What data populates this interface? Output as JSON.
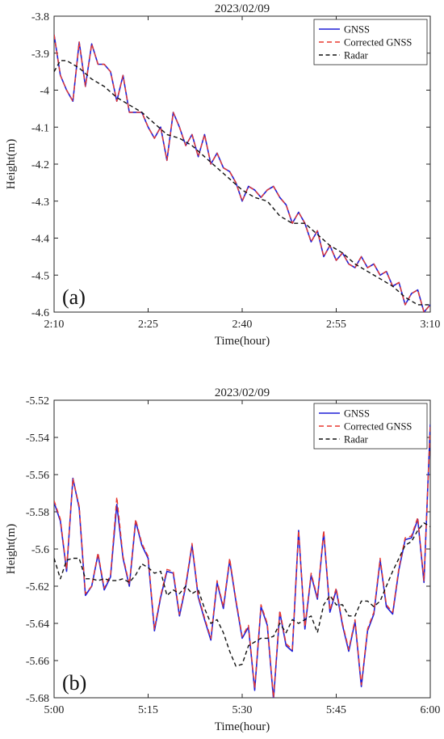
{
  "chart_data": [
    {
      "type": "line",
      "title": "2023/02/09",
      "panel_label": "(a)",
      "xlabel": "Time(hour)",
      "ylabel": "Height(m)",
      "x_unit": "minutes after 2:10",
      "xlim": [
        0,
        60
      ],
      "ylim": [
        -4.6,
        -3.8
      ],
      "xticks": [
        0,
        15,
        30,
        45,
        60
      ],
      "xtick_labels": [
        "2:10",
        "2:25",
        "2:40",
        "2:55",
        "3:10"
      ],
      "yticks": [
        -3.8,
        -3.9,
        -4.0,
        -4.1,
        -4.2,
        -4.3,
        -4.4,
        -4.5,
        -4.6
      ],
      "ytick_labels": [
        "-3.8",
        "-3.9",
        "-4",
        "-4.1",
        "-4.2",
        "-4.3",
        "-4.4",
        "-4.5",
        "-4.6"
      ],
      "grid": false,
      "legend_position": "top-right",
      "series": [
        {
          "name": "GNSS",
          "color": "#1f1fd6",
          "dash": "solid",
          "x": [
            0,
            1,
            2,
            3,
            4,
            5,
            6,
            7,
            8,
            9,
            10,
            11,
            12,
            13,
            14,
            15,
            16,
            17,
            18,
            19,
            20,
            21,
            22,
            23,
            24,
            25,
            26,
            27,
            28,
            29,
            30,
            31,
            32,
            33,
            34,
            35,
            36,
            37,
            38,
            39,
            40,
            41,
            42,
            43,
            44,
            45,
            46,
            47,
            48,
            49,
            50,
            51,
            52,
            53,
            54,
            55,
            56,
            57,
            58,
            59,
            60
          ],
          "y": [
            -3.85,
            -3.96,
            -4.0,
            -4.03,
            -3.87,
            -3.99,
            -3.875,
            -3.93,
            -3.93,
            -3.95,
            -4.03,
            -3.96,
            -4.06,
            -4.06,
            -4.06,
            -4.1,
            -4.13,
            -4.1,
            -4.19,
            -4.06,
            -4.1,
            -4.15,
            -4.12,
            -4.18,
            -4.12,
            -4.2,
            -4.17,
            -4.21,
            -4.22,
            -4.25,
            -4.3,
            -4.26,
            -4.27,
            -4.29,
            -4.27,
            -4.26,
            -4.29,
            -4.31,
            -4.36,
            -4.33,
            -4.36,
            -4.41,
            -4.38,
            -4.45,
            -4.42,
            -4.46,
            -4.44,
            -4.47,
            -4.48,
            -4.45,
            -4.48,
            -4.47,
            -4.5,
            -4.49,
            -4.53,
            -4.52,
            -4.58,
            -4.55,
            -4.54,
            -4.6,
            -4.58
          ]
        },
        {
          "name": "Corrected GNSS",
          "color": "#e8392f",
          "dash": "dashed",
          "x": [
            0,
            1,
            2,
            3,
            4,
            5,
            6,
            7,
            8,
            9,
            10,
            11,
            12,
            13,
            14,
            15,
            16,
            17,
            18,
            19,
            20,
            21,
            22,
            23,
            24,
            25,
            26,
            27,
            28,
            29,
            30,
            31,
            32,
            33,
            34,
            35,
            36,
            37,
            38,
            39,
            40,
            41,
            42,
            43,
            44,
            45,
            46,
            47,
            48,
            49,
            50,
            51,
            52,
            53,
            54,
            55,
            56,
            57,
            58,
            59,
            60
          ],
          "y": [
            -3.85,
            -3.96,
            -4.0,
            -4.03,
            -3.87,
            -3.99,
            -3.875,
            -3.93,
            -3.93,
            -3.95,
            -4.03,
            -3.96,
            -4.06,
            -4.06,
            -4.06,
            -4.1,
            -4.13,
            -4.1,
            -4.19,
            -4.06,
            -4.1,
            -4.15,
            -4.12,
            -4.18,
            -4.12,
            -4.2,
            -4.17,
            -4.21,
            -4.22,
            -4.25,
            -4.3,
            -4.26,
            -4.27,
            -4.29,
            -4.27,
            -4.26,
            -4.29,
            -4.31,
            -4.36,
            -4.33,
            -4.36,
            -4.41,
            -4.38,
            -4.45,
            -4.42,
            -4.46,
            -4.44,
            -4.47,
            -4.48,
            -4.45,
            -4.48,
            -4.47,
            -4.5,
            -4.49,
            -4.53,
            -4.52,
            -4.58,
            -4.55,
            -4.54,
            -4.6,
            -4.58
          ]
        },
        {
          "name": "Radar",
          "color": "#111111",
          "dash": "dashed",
          "x": [
            0,
            1,
            2,
            4,
            6,
            8,
            10,
            12,
            14,
            16,
            18,
            20,
            22,
            24,
            26,
            28,
            30,
            32,
            34,
            36,
            38,
            40,
            42,
            44,
            46,
            48,
            50,
            52,
            54,
            56,
            58,
            60
          ],
          "y": [
            -3.95,
            -3.92,
            -3.92,
            -3.94,
            -3.97,
            -3.99,
            -4.02,
            -4.04,
            -4.06,
            -4.09,
            -4.12,
            -4.13,
            -4.15,
            -4.18,
            -4.21,
            -4.24,
            -4.27,
            -4.29,
            -4.3,
            -4.34,
            -4.36,
            -4.36,
            -4.39,
            -4.42,
            -4.44,
            -4.47,
            -4.49,
            -4.51,
            -4.53,
            -4.56,
            -4.58,
            -4.58
          ]
        }
      ]
    },
    {
      "type": "line",
      "title": "2023/02/09",
      "panel_label": "(b)",
      "xlabel": "Time(hour)",
      "ylabel": "Height(m)",
      "x_unit": "minutes after 5:00",
      "xlim": [
        0,
        60
      ],
      "ylim": [
        -5.68,
        -5.52
      ],
      "xticks": [
        0,
        15,
        30,
        45,
        60
      ],
      "xtick_labels": [
        "5:00",
        "5:15",
        "5:30",
        "5:45",
        "6:00"
      ],
      "yticks": [
        -5.52,
        -5.54,
        -5.56,
        -5.58,
        -5.6,
        -5.62,
        -5.64,
        -5.66,
        -5.68
      ],
      "ytick_labels": [
        "-5.52",
        "-5.54",
        "-5.56",
        "-5.58",
        "-5.6",
        "-5.62",
        "-5.64",
        "-5.66",
        "-5.68"
      ],
      "grid": false,
      "legend_position": "top-right",
      "series": [
        {
          "name": "GNSS",
          "color": "#1f1fd6",
          "dash": "solid",
          "x": [
            0,
            1,
            2,
            3,
            4,
            5,
            6,
            7,
            8,
            9,
            10,
            11,
            12,
            13,
            14,
            15,
            16,
            17,
            18,
            19,
            20,
            21,
            22,
            23,
            24,
            25,
            26,
            27,
            28,
            29,
            30,
            31,
            32,
            33,
            34,
            35,
            36,
            37,
            38,
            39,
            40,
            41,
            42,
            43,
            44,
            45,
            46,
            47,
            48,
            49,
            50,
            51,
            52,
            53,
            54,
            55,
            56,
            57,
            58,
            59,
            60
          ],
          "y": [
            -5.575,
            -5.585,
            -5.612,
            -5.562,
            -5.578,
            -5.625,
            -5.62,
            -5.603,
            -5.622,
            -5.615,
            -5.576,
            -5.605,
            -5.62,
            -5.585,
            -5.598,
            -5.605,
            -5.644,
            -5.626,
            -5.612,
            -5.613,
            -5.636,
            -5.62,
            -5.598,
            -5.626,
            -5.638,
            -5.649,
            -5.618,
            -5.632,
            -5.606,
            -5.628,
            -5.648,
            -5.642,
            -5.676,
            -5.631,
            -5.641,
            -5.681,
            -5.634,
            -5.652,
            -5.655,
            -5.59,
            -5.643,
            -5.614,
            -5.627,
            -5.591,
            -5.634,
            -5.622,
            -5.641,
            -5.655,
            -5.639,
            -5.674,
            -5.644,
            -5.635,
            -5.606,
            -5.631,
            -5.635,
            -5.611,
            -5.595,
            -5.594,
            -5.584,
            -5.618,
            -5.533
          ]
        },
        {
          "name": "Corrected GNSS",
          "color": "#e8392f",
          "dash": "dashed",
          "x": [
            0,
            1,
            2,
            3,
            4,
            5,
            6,
            7,
            8,
            9,
            10,
            11,
            12,
            13,
            14,
            15,
            16,
            17,
            18,
            19,
            20,
            21,
            22,
            23,
            24,
            25,
            26,
            27,
            28,
            29,
            30,
            31,
            32,
            33,
            34,
            35,
            36,
            37,
            38,
            39,
            40,
            41,
            42,
            43,
            44,
            45,
            46,
            47,
            48,
            49,
            50,
            51,
            52,
            53,
            54,
            55,
            56,
            57,
            58,
            59,
            60
          ],
          "y": [
            -5.574,
            -5.584,
            -5.611,
            -5.562,
            -5.577,
            -5.624,
            -5.62,
            -5.602,
            -5.621,
            -5.614,
            -5.572,
            -5.604,
            -5.619,
            -5.584,
            -5.597,
            -5.604,
            -5.643,
            -5.625,
            -5.611,
            -5.612,
            -5.635,
            -5.619,
            -5.597,
            -5.625,
            -5.637,
            -5.648,
            -5.617,
            -5.631,
            -5.605,
            -5.627,
            -5.647,
            -5.641,
            -5.675,
            -5.63,
            -5.64,
            -5.68,
            -5.633,
            -5.651,
            -5.654,
            -5.59,
            -5.642,
            -5.613,
            -5.626,
            -5.59,
            -5.633,
            -5.621,
            -5.64,
            -5.654,
            -5.638,
            -5.673,
            -5.643,
            -5.634,
            -5.605,
            -5.63,
            -5.634,
            -5.61,
            -5.594,
            -5.593,
            -5.583,
            -5.617,
            -5.534
          ]
        },
        {
          "name": "Radar",
          "color": "#111111",
          "dash": "dashed",
          "x": [
            0,
            1,
            2,
            3,
            4,
            5,
            6,
            7,
            8,
            9,
            10,
            11,
            12,
            13,
            14,
            15,
            16,
            17,
            18,
            19,
            20,
            21,
            22,
            23,
            24,
            25,
            26,
            27,
            28,
            29,
            30,
            31,
            32,
            33,
            34,
            35,
            36,
            37,
            38,
            39,
            40,
            41,
            42,
            43,
            44,
            45,
            46,
            47,
            48,
            49,
            50,
            51,
            52,
            53,
            54,
            55,
            56,
            57,
            58,
            59,
            60
          ],
          "y": [
            -5.605,
            -5.616,
            -5.606,
            -5.605,
            -5.605,
            -5.616,
            -5.616,
            -5.617,
            -5.616,
            -5.617,
            -5.617,
            -5.616,
            -5.618,
            -5.614,
            -5.608,
            -5.61,
            -5.613,
            -5.612,
            -5.625,
            -5.622,
            -5.624,
            -5.62,
            -5.624,
            -5.622,
            -5.632,
            -5.64,
            -5.638,
            -5.645,
            -5.655,
            -5.663,
            -5.662,
            -5.652,
            -5.65,
            -5.648,
            -5.648,
            -5.647,
            -5.64,
            -5.645,
            -5.638,
            -5.64,
            -5.638,
            -5.636,
            -5.645,
            -5.63,
            -5.625,
            -5.63,
            -5.63,
            -5.636,
            -5.636,
            -5.628,
            -5.628,
            -5.631,
            -5.628,
            -5.62,
            -5.612,
            -5.605,
            -5.598,
            -5.596,
            -5.59,
            -5.586,
            -5.588
          ]
        }
      ]
    }
  ]
}
